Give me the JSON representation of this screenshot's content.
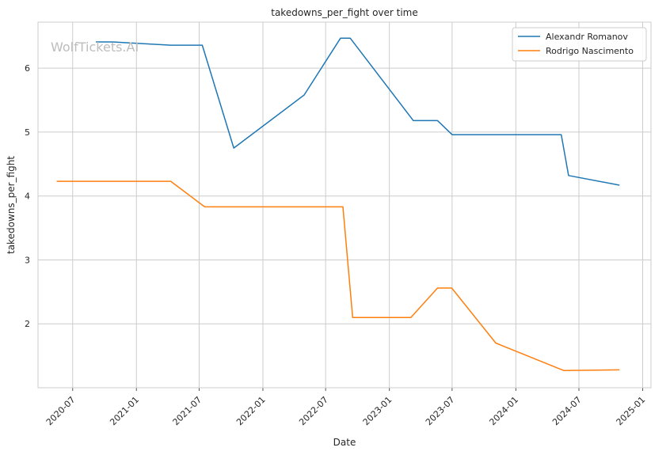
{
  "chart_data": {
    "type": "line",
    "title": "takedowns_per_fight over time",
    "xlabel": "Date",
    "ylabel": "takedowns_per_fight",
    "watermark": "WolfTickets.AI",
    "grid": true,
    "legend_position": "top-right",
    "xlim": [
      "2020-03-23",
      "2025-01-25"
    ],
    "ylim": [
      1.0,
      6.72
    ],
    "x_ticks": [
      "2020-07-01",
      "2021-01-01",
      "2021-07-01",
      "2022-01-01",
      "2022-07-01",
      "2023-01-01",
      "2023-07-01",
      "2024-01-01",
      "2024-07-01",
      "2025-01-01"
    ],
    "x_tick_labels": [
      "2020-07",
      "2021-01",
      "2021-07",
      "2022-01",
      "2022-07",
      "2023-01",
      "2023-07",
      "2024-01",
      "2024-07",
      "2025-01"
    ],
    "y_ticks": [
      2,
      3,
      4,
      5,
      6
    ],
    "y_tick_labels": [
      "2",
      "3",
      "4",
      "5",
      "6"
    ],
    "series": [
      {
        "name": "Alexandr Romanov",
        "color": "#1f77b4",
        "points": [
          {
            "x": "2020-09-06",
            "y": 6.41
          },
          {
            "x": "2020-10-24",
            "y": 6.41
          },
          {
            "x": "2021-04-10",
            "y": 6.36
          },
          {
            "x": "2021-07-10",
            "y": 6.36
          },
          {
            "x": "2021-10-09",
            "y": 4.75
          },
          {
            "x": "2022-04-30",
            "y": 5.58
          },
          {
            "x": "2022-08-13",
            "y": 6.47
          },
          {
            "x": "2022-09-10",
            "y": 6.47
          },
          {
            "x": "2023-03-11",
            "y": 5.18
          },
          {
            "x": "2023-05-20",
            "y": 5.18
          },
          {
            "x": "2023-07-01",
            "y": 4.96
          },
          {
            "x": "2024-05-11",
            "y": 4.96
          },
          {
            "x": "2024-06-01",
            "y": 4.32
          },
          {
            "x": "2024-10-26",
            "y": 4.17
          }
        ]
      },
      {
        "name": "Rodrigo Nascimento",
        "color": "#ff7f0e",
        "points": [
          {
            "x": "2020-05-16",
            "y": 4.23
          },
          {
            "x": "2021-04-10",
            "y": 4.23
          },
          {
            "x": "2021-07-17",
            "y": 3.83
          },
          {
            "x": "2022-08-20",
            "y": 3.83
          },
          {
            "x": "2022-09-17",
            "y": 2.1
          },
          {
            "x": "2023-03-04",
            "y": 2.1
          },
          {
            "x": "2023-05-20",
            "y": 2.56
          },
          {
            "x": "2023-06-30",
            "y": 2.56
          },
          {
            "x": "2023-11-04",
            "y": 1.7
          },
          {
            "x": "2024-05-18",
            "y": 1.27
          },
          {
            "x": "2024-10-26",
            "y": 1.28
          }
        ]
      }
    ]
  }
}
